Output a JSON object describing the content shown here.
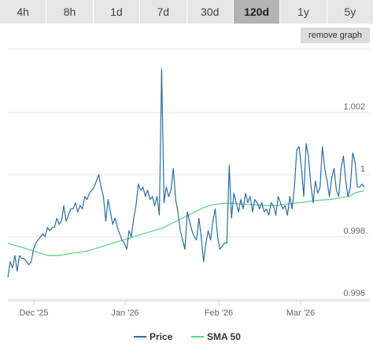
{
  "tabs": [
    {
      "label": "4h",
      "active": false
    },
    {
      "label": "8h",
      "active": false
    },
    {
      "label": "1d",
      "active": false
    },
    {
      "label": "7d",
      "active": false
    },
    {
      "label": "30d",
      "active": false
    },
    {
      "label": "120d",
      "active": true
    },
    {
      "label": "1y",
      "active": false
    },
    {
      "label": "5y",
      "active": false
    }
  ],
  "remove_graph_label": "remove graph",
  "colors": {
    "price": "#2b6ea0",
    "sma": "#5fd68a",
    "grid": "#e6e6e6",
    "axis": "#cccccc",
    "tab_bg": "#e6e6e6",
    "tab_active": "#b3b3b3"
  },
  "chart_data": {
    "type": "line",
    "x_ticks": [
      "Dec '25",
      "Jan '26",
      "Feb '26",
      "Mar '26"
    ],
    "y_ticks": [
      "0.996",
      "0.998",
      "1",
      "1.002"
    ],
    "y_tick_values": [
      0.996,
      0.998,
      1.0,
      1.002
    ],
    "ylim": [
      0.99595,
      1.00405
    ],
    "grid": "horizontal",
    "legend_position": "bottom-center",
    "series": [
      {
        "name": "Price",
        "values": [
          0.9967,
          0.9972,
          0.997,
          0.9974,
          0.9969,
          0.9974,
          0.9973,
          0.9973,
          0.9972,
          0.9971,
          0.9972,
          0.9976,
          0.9978,
          0.9979,
          0.998,
          0.9981,
          0.998,
          0.9983,
          0.9982,
          0.9983,
          0.9983,
          0.9986,
          0.9984,
          0.9985,
          0.999,
          0.9985,
          0.9987,
          0.9989,
          0.9989,
          0.9991,
          0.9988,
          0.999,
          0.9989,
          0.9993,
          0.9992,
          0.9994,
          0.9995,
          0.9996,
          0.9998,
          1.0,
          0.9996,
          0.9993,
          0.9985,
          0.9992,
          0.9988,
          0.9984,
          0.9986,
          0.9983,
          0.9981,
          0.9979,
          0.9978,
          0.9976,
          0.9982,
          0.998,
          0.9986,
          0.999,
          0.9997,
          0.9995,
          0.9996,
          0.9993,
          0.9995,
          0.9992,
          0.9993,
          0.999,
          0.9993,
          0.9987,
          1.0034,
          0.9991,
          0.9996,
          0.9993,
          0.9995,
          1.0002,
          0.9992,
          0.9988,
          0.9982,
          0.9979,
          0.9976,
          0.9988,
          0.9985,
          0.9982,
          0.998,
          0.9979,
          0.9986,
          0.998,
          0.9972,
          0.9978,
          0.9982,
          0.9979,
          0.9985,
          0.9989,
          0.998,
          0.9976,
          0.9977,
          0.9978,
          0.9978,
          1.0003,
          0.9986,
          0.9994,
          0.9991,
          0.9988,
          0.9992,
          0.9989,
          0.9994,
          0.9991,
          0.9993,
          0.9988,
          0.9992,
          0.9991,
          0.9989,
          0.9991,
          0.9988,
          0.9989,
          0.9987,
          0.9991,
          0.999,
          0.9987,
          0.9993,
          0.9991,
          0.9989,
          0.999,
          0.9987,
          0.9993,
          0.9989,
          0.9996,
          1.0008,
          1.0009,
          1.0002,
          0.9993,
          1.001,
          1.0006,
          0.9997,
          0.9991,
          0.9998,
          0.9994,
          0.9996,
          1.0009,
          1.0002,
          0.9998,
          0.9993,
          0.9999,
          1.0002,
          0.9995,
          0.9993,
          1.0002,
          1.0006,
          0.9998,
          0.9993,
          0.9996,
          1.0007,
          1.0004,
          0.9996,
          0.9996,
          0.9997,
          0.9996
        ]
      },
      {
        "name": "SMA 50",
        "values": [
          0.9978,
          0.99775,
          0.9977,
          0.99765,
          0.9976,
          0.99755,
          0.9975,
          0.99745,
          0.9974,
          0.9974,
          0.9974,
          0.99742,
          0.99745,
          0.99748,
          0.9975,
          0.99752,
          0.99755,
          0.9976,
          0.99765,
          0.9977,
          0.99775,
          0.9978,
          0.99785,
          0.9979,
          0.99795,
          0.998,
          0.99805,
          0.9981,
          0.99815,
          0.9982,
          0.99825,
          0.9983,
          0.99838,
          0.99846,
          0.99854,
          0.99862,
          0.9987,
          0.99878,
          0.99886,
          0.99894,
          0.999,
          0.99904,
          0.99906,
          0.99908,
          0.99908,
          0.99907,
          0.99906,
          0.99905,
          0.99904,
          0.99903,
          0.99902,
          0.99901,
          0.999,
          0.999,
          0.99902,
          0.99904,
          0.99906,
          0.99908,
          0.9991,
          0.99912,
          0.99914,
          0.99916,
          0.99918,
          0.99919,
          0.9992,
          0.99922,
          0.99925,
          0.99928,
          0.9993,
          0.9994,
          0.99945,
          0.99948
        ]
      }
    ]
  }
}
